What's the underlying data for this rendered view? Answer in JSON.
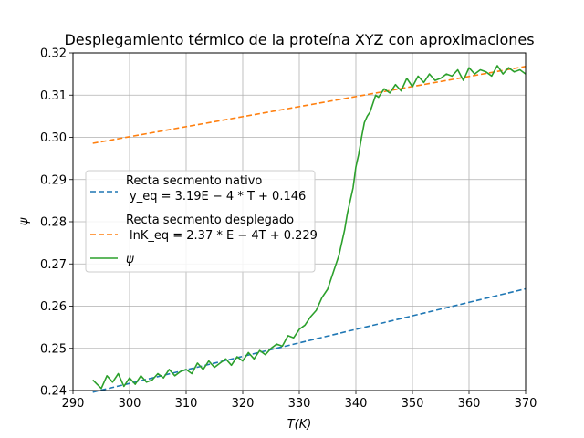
{
  "chart_data": {
    "type": "line",
    "title": "Desplegamiento térmico de la proteína XYZ con aproximaciones",
    "xlabel": "T(K)",
    "ylabel": "ψ",
    "xlim": [
      290,
      370
    ],
    "ylim": [
      0.24,
      0.32
    ],
    "xticks": [
      290,
      300,
      310,
      320,
      330,
      340,
      350,
      360,
      370
    ],
    "yticks": [
      0.24,
      0.25,
      0.26,
      0.27,
      0.28,
      0.29,
      0.3,
      0.31,
      0.32
    ],
    "grid": true,
    "legend_position": "center-left",
    "series": [
      {
        "name": "Recta secmento nativo",
        "formula": "y_eq = 3.19E − 4 * T + 0.146",
        "style": "dashed",
        "color": "#1f77b4",
        "x": [
          293.5,
          370
        ],
        "y": [
          0.2396,
          0.2641
        ]
      },
      {
        "name": "Recta secmento desplegado",
        "formula": "lnK_eq = 2.37 * E − 4T + 0.229",
        "style": "dashed",
        "color": "#ff7f0e",
        "x": [
          293.5,
          370
        ],
        "y": [
          0.2986,
          0.3168
        ]
      },
      {
        "name": "ψ",
        "style": "solid",
        "color": "#2ca02c",
        "x": [
          293.5,
          295,
          296,
          297,
          298,
          299,
          300,
          301,
          302,
          303,
          304,
          305,
          306,
          307,
          308,
          309,
          310,
          311,
          312,
          313,
          314,
          315,
          316,
          317,
          318,
          319,
          320,
          321,
          322,
          323,
          324,
          325,
          326,
          327,
          328,
          329,
          330,
          331,
          332,
          333,
          334,
          335,
          336,
          337,
          337.5,
          338,
          338.5,
          339,
          339.5,
          340,
          340.5,
          341,
          341.5,
          342,
          342.5,
          343,
          343.5,
          344,
          345,
          346,
          347,
          348,
          349,
          350,
          351,
          352,
          353,
          354,
          355,
          356,
          357,
          358,
          359,
          360,
          361,
          362,
          363,
          364,
          365,
          366,
          367,
          368,
          369,
          370
        ],
        "y": [
          0.2425,
          0.2405,
          0.2435,
          0.242,
          0.244,
          0.241,
          0.243,
          0.2415,
          0.2435,
          0.242,
          0.2425,
          0.244,
          0.243,
          0.245,
          0.2435,
          0.2445,
          0.245,
          0.244,
          0.2465,
          0.245,
          0.247,
          0.2455,
          0.2465,
          0.2475,
          0.246,
          0.248,
          0.247,
          0.249,
          0.2475,
          0.2495,
          0.2485,
          0.25,
          0.251,
          0.2505,
          0.253,
          0.2525,
          0.2545,
          0.2555,
          0.2575,
          0.259,
          0.262,
          0.264,
          0.268,
          0.272,
          0.275,
          0.278,
          0.282,
          0.285,
          0.288,
          0.293,
          0.296,
          0.3,
          0.3035,
          0.305,
          0.306,
          0.308,
          0.31,
          0.3095,
          0.3115,
          0.3105,
          0.3125,
          0.311,
          0.314,
          0.312,
          0.3145,
          0.313,
          0.315,
          0.3135,
          0.314,
          0.315,
          0.3145,
          0.316,
          0.3135,
          0.3165,
          0.315,
          0.316,
          0.3155,
          0.3145,
          0.317,
          0.315,
          0.3165,
          0.3155,
          0.316,
          0.315
        ]
      }
    ]
  }
}
